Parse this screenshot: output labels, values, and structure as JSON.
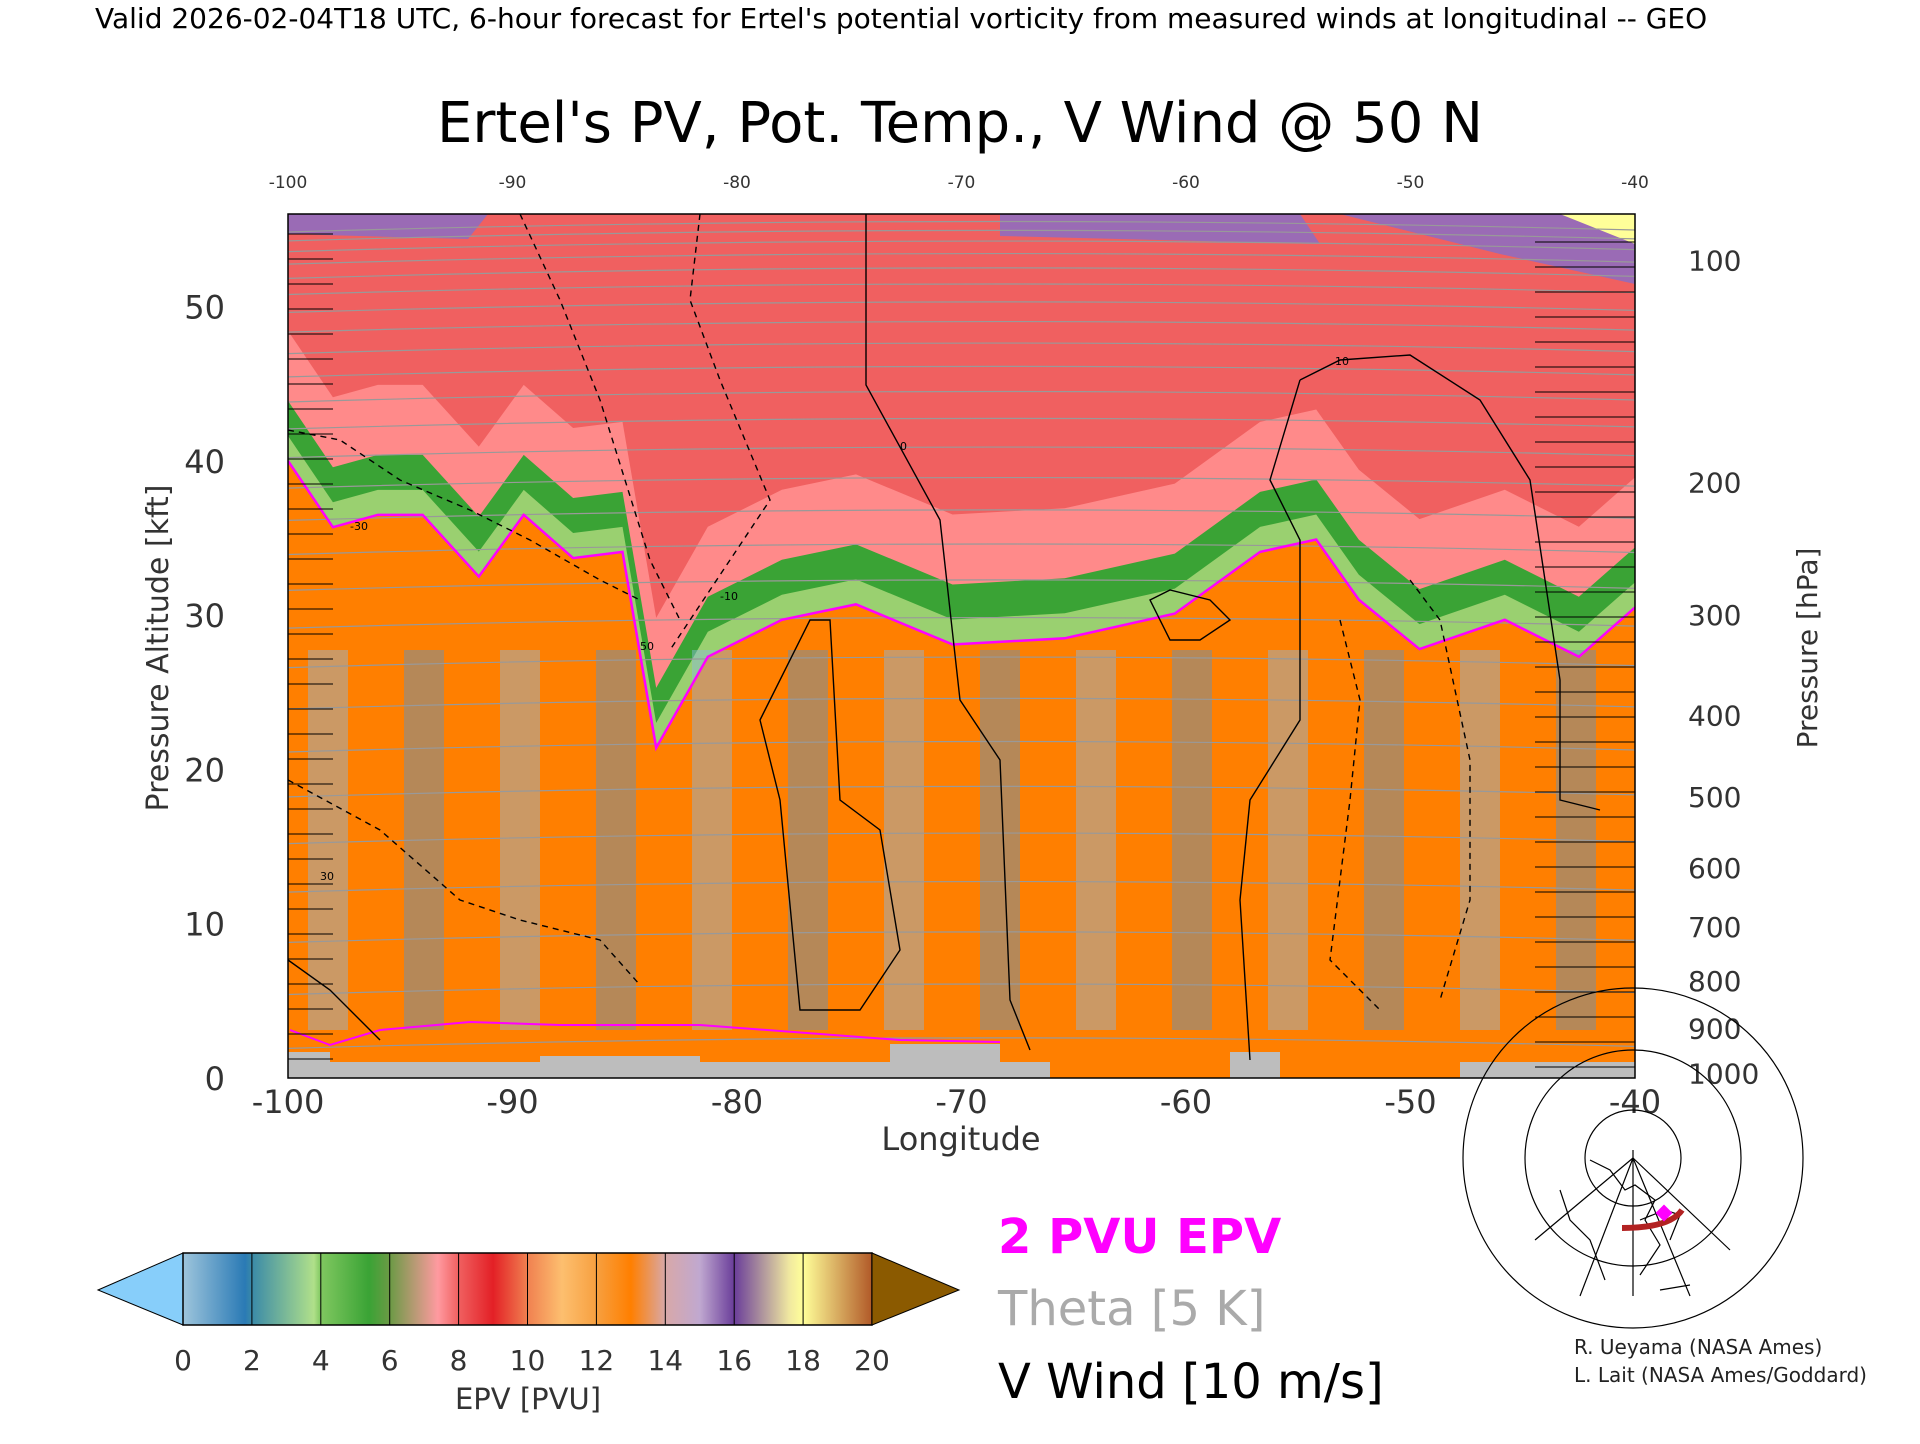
{
  "header": "Valid 2026-02-04T18 UTC, 6-hour forecast for Ertel's potential vorticity from measured winds at longitudinal -- GEO",
  "chart_data": {
    "type": "heatmap",
    "title": "Ertel's PV, Pot. Temp., V Wind @ 50 N",
    "xlabel": "Longitude",
    "ylabel_left": "Pressure Altitude [kft]",
    "ylabel_right": "Pressure [hPa]",
    "xlim": [
      -100,
      -40
    ],
    "ylim": [
      0,
      56
    ],
    "x_ticks_bottom": [
      "-100",
      "-90",
      "-80",
      "-70",
      "-60",
      "-50",
      "-40"
    ],
    "x_ticks_top": [
      "-100",
      "-90",
      "-80",
      "-70",
      "-60",
      "-50",
      "-40"
    ],
    "y_ticks_left": [
      {
        "label": "0",
        "v": 0
      },
      {
        "label": "10",
        "v": 10
      },
      {
        "label": "20",
        "v": 20
      },
      {
        "label": "30",
        "v": 30
      },
      {
        "label": "40",
        "v": 40
      },
      {
        "label": "50",
        "v": 50
      }
    ],
    "y_ticks_right": [
      {
        "label": "100",
        "kft": 53.0
      },
      {
        "label": "200",
        "kft": 38.6
      },
      {
        "label": "300",
        "kft": 30.0
      },
      {
        "label": "400",
        "kft": 23.5
      },
      {
        "label": "500",
        "kft": 18.2
      },
      {
        "label": "600",
        "kft": 13.6
      },
      {
        "label": "700",
        "kft": 9.8
      },
      {
        "label": "800",
        "kft": 6.3
      },
      {
        "label": "900",
        "kft": 3.2
      },
      {
        "label": "1000",
        "kft": 0.3
      }
    ],
    "tropopause_2pvu_kft": {
      "lon": [
        -100,
        -98,
        -96,
        -94,
        -91.5,
        -89.5,
        -87.3,
        -85.1,
        -83.6,
        -81.3,
        -78,
        -74.7,
        -70.4,
        -65.4,
        -60.5,
        -56.7,
        -54.2,
        -52.3,
        -49.6,
        -45.8,
        -42.5,
        -40
      ],
      "kft": [
        40,
        35.7,
        36.5,
        36.5,
        32.5,
        36.5,
        33.7,
        34.1,
        21.4,
        27.3,
        29.7,
        30.7,
        28.1,
        28.5,
        30.1,
        34.1,
        34.9,
        31.0,
        27.8,
        29.7,
        27.3,
        30.5
      ]
    },
    "v_wind_contour_labels": [
      "-30",
      "-10",
      "0",
      "10",
      "30",
      "50"
    ]
  },
  "colorbar": {
    "label": "EPV [PVU]",
    "ticks": [
      "0",
      "2",
      "4",
      "6",
      "8",
      "10",
      "12",
      "14",
      "16",
      "18",
      "20"
    ],
    "under_color": "#87cefa",
    "over_color": "#8b5a00"
  },
  "legend": {
    "epv": "2 PVU EPV",
    "theta": "Theta [5 K]",
    "wind": "V Wind [10 m/s]",
    "epv_color": "#ff00ff",
    "theta_color": "#aaaaaa",
    "wind_color": "#000000"
  },
  "credits": [
    "R. Ueyama (NASA Ames)",
    "L. Lait (NASA Ames/Goddard)"
  ]
}
